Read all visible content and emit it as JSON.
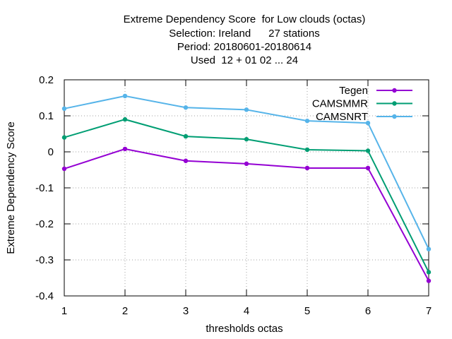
{
  "chart_data": {
    "type": "line",
    "title_lines": [
      "Extreme Dependency Score  for Low clouds (octas)",
      "Selection: Ireland      27 stations",
      "Period: 20180601-20180614",
      "Used  12 + 01 02 ... 24"
    ],
    "xlabel": "thresholds octas",
    "ylabel": "Extreme Dependency Score",
    "x": [
      1,
      2,
      3,
      4,
      5,
      6,
      7
    ],
    "xlim": [
      1,
      7
    ],
    "ylim": [
      -0.4,
      0.2
    ],
    "xticks": [
      "1",
      "2",
      "3",
      "4",
      "5",
      "6",
      "7"
    ],
    "yticks": [
      {
        "v": 0.2,
        "label": "0.2"
      },
      {
        "v": 0.1,
        "label": "0.1"
      },
      {
        "v": 0.0,
        "label": "0"
      },
      {
        "v": -0.1,
        "label": "-0.1"
      },
      {
        "v": -0.2,
        "label": "-0.2"
      },
      {
        "v": -0.3,
        "label": "-0.3"
      },
      {
        "v": -0.4,
        "label": "-0.4"
      }
    ],
    "grid": true,
    "legend_position": "top-right",
    "series": [
      {
        "name": "Tegen",
        "color": "#9400d3",
        "values": [
          -0.047,
          0.008,
          -0.025,
          -0.033,
          -0.045,
          -0.045,
          -0.358
        ]
      },
      {
        "name": "CAMSMMR",
        "color": "#009e73",
        "values": [
          0.04,
          0.09,
          0.043,
          0.035,
          0.006,
          0.003,
          -0.334
        ]
      },
      {
        "name": "CAMSNRT",
        "color": "#56b4e9",
        "values": [
          0.12,
          0.155,
          0.123,
          0.117,
          0.086,
          0.08,
          -0.27
        ]
      }
    ]
  }
}
